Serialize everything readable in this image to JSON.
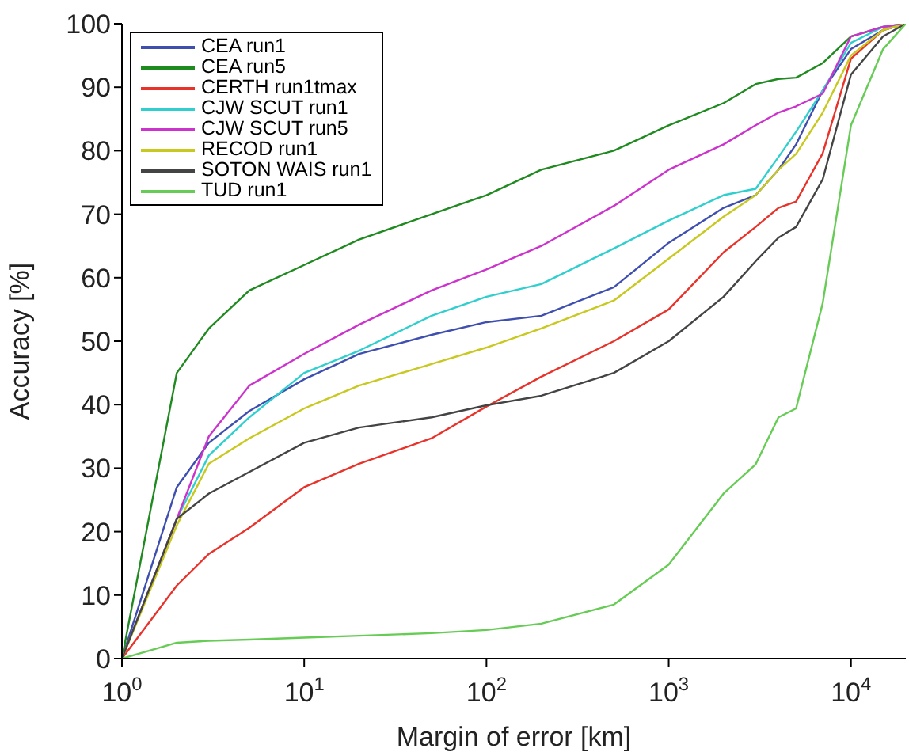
{
  "chart_data": {
    "type": "line",
    "xlabel": "Margin of error [km]",
    "ylabel": "Accuracy [%]",
    "log": "x",
    "grid": false,
    "legend": "top left",
    "marker": "none",
    "line_style": "solid",
    "x": [
      1,
      2,
      3,
      5,
      10,
      20,
      50,
      100,
      200,
      500,
      1000,
      2000,
      3000,
      4000,
      5000,
      7000,
      10000,
      15000,
      20000
    ],
    "xlim": [
      1,
      20000
    ],
    "xticks": [
      {
        "value": 1,
        "label": "10$^{0}$"
      },
      {
        "value": 10,
        "label": "10$^{1}$"
      },
      {
        "value": 100,
        "label": "10$^{2}$"
      },
      {
        "value": 1000,
        "label": "10$^{3}$"
      },
      {
        "value": 10000,
        "label": "10$^{4}$"
      }
    ],
    "ylim": [
      0,
      100
    ],
    "yticks": [
      0,
      10,
      20,
      30,
      40,
      50,
      60,
      70,
      80,
      90,
      100
    ],
    "series": [
      {
        "name": "CEA run1",
        "color": "#3f4fb0",
        "values": [
          0,
          27,
          34,
          39,
          44,
          48,
          51,
          53,
          54,
          58.5,
          65.5,
          71,
          73,
          77,
          81,
          89.5,
          96,
          99,
          100
        ]
      },
      {
        "name": "CEA run5",
        "color": "#1f8a1f",
        "values": [
          0,
          45,
          52,
          58,
          62,
          66,
          70,
          73,
          77,
          80,
          84,
          87.5,
          90.5,
          91.3,
          91.5,
          93.8,
          98,
          99.5,
          100
        ]
      },
      {
        "name": "CERTH run1tmax",
        "color": "#e8322a",
        "values": [
          0,
          11.5,
          16.5,
          20.6,
          27,
          30.7,
          34.7,
          39.7,
          44.4,
          50,
          55,
          64,
          68,
          71,
          72,
          79.6,
          94.5,
          99,
          100
        ]
      },
      {
        "name": "CJW SCUT run1",
        "color": "#2fcfcf",
        "values": [
          0,
          22,
          32,
          38,
          45,
          48.5,
          54,
          57,
          59,
          64.6,
          69,
          73,
          74,
          79,
          83,
          89.5,
          97,
          99.5,
          100
        ]
      },
      {
        "name": "CJW SCUT run5",
        "color": "#cc33cc",
        "values": [
          0,
          22,
          35,
          43,
          48,
          52.6,
          58,
          61.3,
          65,
          71.3,
          77,
          81,
          84,
          86,
          87,
          89,
          98,
          99.5,
          100
        ]
      },
      {
        "name": "RECOD run1",
        "color": "#c8c81e",
        "values": [
          0,
          21,
          30.7,
          34.7,
          39.4,
          43,
          46.4,
          49,
          52,
          56.4,
          63,
          69.6,
          73,
          77,
          79.5,
          86,
          95,
          99,
          100
        ]
      },
      {
        "name": "SOTON WAIS run1",
        "color": "#444444",
        "values": [
          0,
          22,
          26,
          29.4,
          34,
          36.4,
          38,
          39.9,
          41.4,
          45,
          50,
          57,
          62.6,
          66.3,
          68,
          75.5,
          92,
          98,
          100
        ]
      },
      {
        "name": "TUD run1",
        "color": "#66cc55",
        "values": [
          0,
          2.5,
          2.8,
          3,
          3.3,
          3.6,
          4,
          4.5,
          5.5,
          8.5,
          14.8,
          26,
          30.6,
          38,
          39.4,
          56,
          84,
          96,
          100
        ]
      }
    ]
  }
}
